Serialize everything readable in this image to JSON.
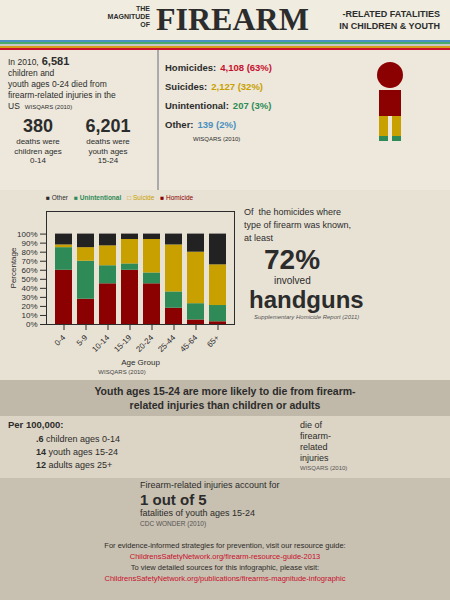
{
  "chart_data": {
    "type": "bar",
    "stacked": true,
    "grid": false,
    "categories": [
      "0-4",
      "5-9",
      "10-14",
      "15-19",
      "20-24",
      "25-44",
      "45-64",
      "65+"
    ],
    "series": [
      {
        "name": "Homicide",
        "color": "#8b0000",
        "values": [
          60,
          28,
          45,
          60,
          45,
          18,
          5,
          3
        ]
      },
      {
        "name": "Unintentional",
        "color": "#2e8b57",
        "values": [
          25,
          42,
          20,
          7,
          12,
          18,
          18,
          18
        ]
      },
      {
        "name": "Suicide",
        "color": "#c8a000",
        "values": [
          3,
          15,
          22,
          27,
          37,
          52,
          57,
          45
        ]
      },
      {
        "name": "Other",
        "color": "#222222",
        "values": [
          12,
          15,
          13,
          6,
          6,
          12,
          20,
          34
        ]
      }
    ],
    "xlabel": "Age Group",
    "ylabel": "Percentage",
    "ylim": [
      0,
      125
    ],
    "yticks": [
      {
        "value": 0,
        "label": "0%"
      },
      {
        "value": 10,
        "label": "10%"
      },
      {
        "value": 20,
        "label": "20%"
      },
      {
        "value": 30,
        "label": "30%"
      },
      {
        "value": 40,
        "label": "40%"
      },
      {
        "value": 50,
        "label": "50%"
      },
      {
        "value": 60,
        "label": "60%"
      },
      {
        "value": 70,
        "label": "70%"
      },
      {
        "value": 80,
        "label": "80%"
      },
      {
        "value": 90,
        "label": "90%"
      },
      {
        "value": 100,
        "label": "100%"
      }
    ],
    "annotations": [
      {
        "text": "THE",
        "color": "#2c2c2c"
      },
      {
        "text": "MAGNITUDE",
        "color": "#2c2c2c"
      },
      {
        "text": "OF",
        "color": "#2c2c2c"
      },
      {
        "text": "FIREARM",
        "color": "#2c2c2c"
      },
      {
        "text": "-RELATED FATALITIES",
        "color": "#2c2c2c"
      },
      {
        "text": "IN CHILDREN & YOUTH",
        "color": "#2c2c2c"
      },
      {
        "text": "In 2010,",
        "color": "#2c2c2c"
      },
      {
        "text": "6,581",
        "color": "#2c2c2c"
      },
      {
        "text": "children and",
        "color": "#2c2c2c"
      },
      {
        "text": "youth ages 0-24 died from",
        "color": "#2c2c2c"
      },
      {
        "text": "firearm-related injuries in the",
        "color": "#2c2c2c"
      },
      {
        "text": "US",
        "color": "#2c2c2c"
      },
      {
        "text": "WISQARS (2010)",
        "color": "#2c2c2c"
      },
      {
        "text": "380",
        "color": "#2c2c2c"
      },
      {
        "text": "deaths were",
        "color": "#2c2c2c"
      },
      {
        "text": "children ages",
        "color": "#2c2c2c"
      },
      {
        "text": "0-14",
        "color": "#2c2c2c"
      },
      {
        "text": "6,201",
        "color": "#2c2c2c"
      },
      {
        "text": "deaths were",
        "color": "#2c2c2c"
      },
      {
        "text": "youth ages",
        "color": "#2c2c2c"
      },
      {
        "text": "15-24",
        "color": "#2c2c2c"
      },
      {
        "text": "Homicides:",
        "color": "#2c2c2c"
      },
      {
        "text": "4,108 (63%)",
        "color": "#c8102e"
      },
      {
        "text": "Suicides:",
        "color": "#2c2c2c"
      },
      {
        "text": "2,127 (32%)",
        "color": "#c8a000"
      },
      {
        "text": "Unintentional:",
        "color": "#2c2c2c"
      },
      {
        "text": "207 (3%)",
        "color": "#2e8b57"
      },
      {
        "text": "Other:",
        "color": "#2c2c2c"
      },
      {
        "text": "139 (2%)",
        "color": "#4a90c0"
      },
      {
        "text": "WISQARS (2010)",
        "color": "#2c2c2c"
      },
      {
        "text": "■ Other",
        "color": "#2c2c2c"
      },
      {
        "text": "■ Unintentional",
        "color": "#2e8b57"
      },
      {
        "text": "□ Suicide",
        "color": "#c8a000"
      },
      {
        "text": "■ Homicide",
        "color": "#8b0000"
      },
      {
        "text": "WISQARS (2010)",
        "color": "#444444"
      },
      {
        "text": "Of  the homicides where",
        "color": "#2c2c2c"
      },
      {
        "text": "type of firearm was known,",
        "color": "#2c2c2c"
      },
      {
        "text": "at least",
        "color": "#2c2c2c"
      },
      {
        "text": "72%",
        "color": "#2c2c2c"
      },
      {
        "text": "involved",
        "color": "#2c2c2c"
      },
      {
        "text": "handguns",
        "color": "#2c2c2c"
      },
      {
        "text": "Supplementary Homicide Report (2011)",
        "color": "#555555"
      },
      {
        "text": "Youth ages 15-24 are more likely to die from firearm-",
        "color": "#2c2c2c"
      },
      {
        "text": "related injuries than children or adults",
        "color": "#2c2c2c"
      },
      {
        "text": "Per 100,000:",
        "color": "#2c2c2c"
      },
      {
        "text": ".6",
        "color": "#2c2c2c"
      },
      {
        "text": " children ages 0-14",
        "color": "#2c2c2c"
      },
      {
        "text": "14",
        "color": "#2c2c2c"
      },
      {
        "text": " youth ages 15-24",
        "color": "#2c2c2c"
      },
      {
        "text": "12",
        "color": "#2c2c2c"
      },
      {
        "text": " adults ages 25+",
        "color": "#2c2c2c"
      },
      {
        "text": "die of",
        "color": "#2c2c2c"
      },
      {
        "text": "firearm-",
        "color": "#2c2c2c"
      },
      {
        "text": "related",
        "color": "#2c2c2c"
      },
      {
        "text": "injuries",
        "color": "#2c2c2c"
      },
      {
        "text": "WISQARS (2010)",
        "color": "#555555"
      },
      {
        "text": "Firearm-related injuries account for",
        "color": "#2c2c2c"
      },
      {
        "text": "1 out of 5",
        "color": "#2c2c2c"
      },
      {
        "text": "fatalities of youth ages 15-24",
        "color": "#2c2c2c"
      },
      {
        "text": "CDC WONDER (2010)",
        "color": "#555555"
      },
      {
        "text": "For evidence-informed strategies for prevention, visit our resource guide:",
        "color": "#2c2c2c"
      },
      {
        "text": "ChildrensSafetyNetwork.org/firearm-resource-guide-2013",
        "color": "#c8102e"
      },
      {
        "text": "To view detailed sources for this infographic, please visit:",
        "color": "#2c2c2c"
      },
      {
        "text": "ChildrensSafetyNetwork.org/publications/firearms-magnitude-infographic",
        "color": "#c8102e"
      }
    ]
  }
}
